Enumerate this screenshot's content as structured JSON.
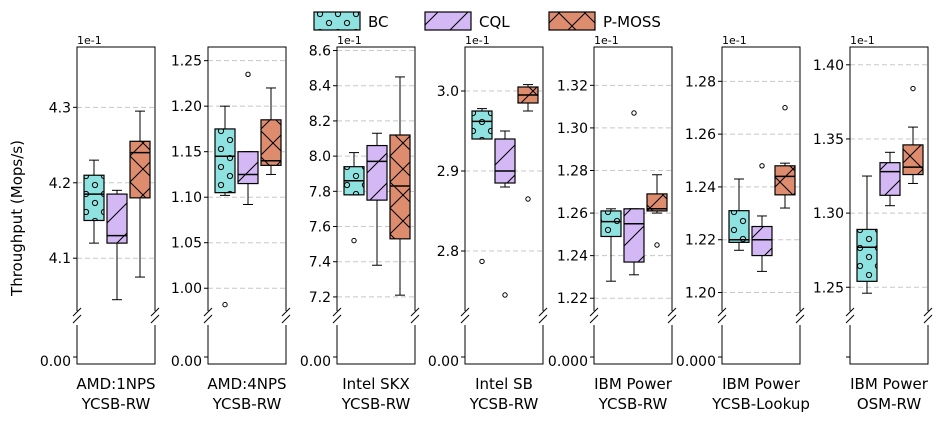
{
  "chart_data": {
    "type": "box",
    "y_axis_label": "Throughput (Mops/s)",
    "legend": [
      {
        "key": "BC",
        "label": "BC",
        "color": "#8ee3e0",
        "pattern": "dots"
      },
      {
        "key": "CQL",
        "label": "CQL",
        "color": "#d4b8f5",
        "pattern": "diag"
      },
      {
        "key": "PMOSS",
        "label": "P-MOSS",
        "color": "#dd8c6e",
        "pattern": "cross"
      }
    ],
    "panels": [
      {
        "key": "amd1",
        "label_line1": "AMD:1NPS",
        "label_line2": "YCSB-RW",
        "scale": "1e-1",
        "ylim": [
          4.03,
          4.38
        ],
        "ticks": [
          {
            "v": 4.1,
            "t": "4.1"
          },
          {
            "v": 4.2,
            "t": "4.2"
          },
          {
            "v": 4.3,
            "t": "4.3"
          }
        ],
        "zero_label": "0.00",
        "boxes": [
          {
            "series": "BC",
            "whislo": 4.12,
            "q1": 4.15,
            "med": 4.185,
            "q3": 4.21,
            "whishi": 4.23,
            "fliers": []
          },
          {
            "series": "CQL",
            "whislo": 4.045,
            "q1": 4.12,
            "med": 4.13,
            "q3": 4.185,
            "whishi": 4.19,
            "fliers": []
          },
          {
            "series": "PMOSS",
            "whislo": 4.075,
            "q1": 4.18,
            "med": 4.24,
            "q3": 4.255,
            "whishi": 4.295,
            "fliers": []
          }
        ]
      },
      {
        "key": "amd4",
        "label_line1": "AMD:4NPS",
        "label_line2": "YCSB-RW",
        "scale": "",
        "ylim": [
          0.975,
          1.265
        ],
        "ticks": [
          {
            "v": 1.0,
            "t": "1.00"
          },
          {
            "v": 1.05,
            "t": "1.05"
          },
          {
            "v": 1.1,
            "t": "1.10"
          },
          {
            "v": 1.15,
            "t": "1.15"
          },
          {
            "v": 1.2,
            "t": "1.20"
          },
          {
            "v": 1.25,
            "t": "1.25"
          }
        ],
        "zero_label": "0.00",
        "boxes": [
          {
            "series": "BC",
            "whislo": 1.102,
            "q1": 1.105,
            "med": 1.145,
            "q3": 1.175,
            "whishi": 1.2,
            "fliers": [
              0.982
            ]
          },
          {
            "series": "CQL",
            "whislo": 1.092,
            "q1": 1.115,
            "med": 1.125,
            "q3": 1.15,
            "whishi": 1.15,
            "fliers": [
              1.235
            ]
          },
          {
            "series": "PMOSS",
            "whislo": 1.125,
            "q1": 1.135,
            "med": 1.14,
            "q3": 1.185,
            "whishi": 1.22,
            "fliers": []
          }
        ]
      },
      {
        "key": "skx",
        "label_line1": "Intel SKX",
        "label_line2": "YCSB-RW",
        "scale": "1e-1",
        "ylim": [
          7.12,
          8.62
        ],
        "ticks": [
          {
            "v": 7.2,
            "t": "7.2"
          },
          {
            "v": 7.4,
            "t": "7.4"
          },
          {
            "v": 7.6,
            "t": "7.6"
          },
          {
            "v": 7.8,
            "t": "7.8"
          },
          {
            "v": 8.0,
            "t": "8.0"
          },
          {
            "v": 8.2,
            "t": "8.2"
          },
          {
            "v": 8.4,
            "t": "8.4"
          },
          {
            "v": 8.6,
            "t": "8.6"
          }
        ],
        "zero_label": "0.00",
        "boxes": [
          {
            "series": "BC",
            "whislo": 7.78,
            "q1": 7.78,
            "med": 7.86,
            "q3": 7.94,
            "whishi": 8.02,
            "fliers": [
              7.52
            ]
          },
          {
            "series": "CQL",
            "whislo": 7.38,
            "q1": 7.75,
            "med": 7.97,
            "q3": 8.06,
            "whishi": 8.13,
            "fliers": []
          },
          {
            "series": "PMOSS",
            "whislo": 7.21,
            "q1": 7.53,
            "med": 7.83,
            "q3": 8.12,
            "whishi": 8.45,
            "fliers": []
          }
        ]
      },
      {
        "key": "sb",
        "label_line1": "Intel SB",
        "label_line2": "YCSB-RW",
        "scale": "1e-1",
        "ylim": [
          2.725,
          3.055
        ],
        "ticks": [
          {
            "v": 2.8,
            "t": "2.8"
          },
          {
            "v": 2.9,
            "t": "2.9"
          },
          {
            "v": 3.0,
            "t": "3.0"
          }
        ],
        "zero_label": "0.00",
        "boxes": [
          {
            "series": "BC",
            "whislo": 2.94,
            "q1": 2.94,
            "med": 2.962,
            "q3": 2.975,
            "whishi": 2.978,
            "fliers": [
              2.787
            ]
          },
          {
            "series": "CQL",
            "whislo": 2.88,
            "q1": 2.885,
            "med": 2.9,
            "q3": 2.94,
            "whishi": 2.95,
            "fliers": [
              2.745
            ]
          },
          {
            "series": "PMOSS",
            "whislo": 2.975,
            "q1": 2.985,
            "med": 2.995,
            "q3": 3.005,
            "whishi": 3.008,
            "fliers": [
              2.865
            ]
          }
        ]
      },
      {
        "key": "ibmrw",
        "label_line1": "IBM Power",
        "label_line2": "YCSB-RW",
        "scale": "1e-1",
        "ylim": [
          1.214,
          1.338
        ],
        "ticks": [
          {
            "v": 1.22,
            "t": "1.22"
          },
          {
            "v": 1.24,
            "t": "1.24"
          },
          {
            "v": 1.26,
            "t": "1.26"
          },
          {
            "v": 1.28,
            "t": "1.28"
          },
          {
            "v": 1.3,
            "t": "1.30"
          },
          {
            "v": 1.32,
            "t": "1.32"
          }
        ],
        "zero_label": "0.000",
        "boxes": [
          {
            "series": "BC",
            "whislo": 1.228,
            "q1": 1.249,
            "med": 1.256,
            "q3": 1.261,
            "whishi": 1.262,
            "fliers": []
          },
          {
            "series": "CQL",
            "whislo": 1.231,
            "q1": 1.237,
            "med": 1.255,
            "q3": 1.262,
            "whishi": 1.262,
            "fliers": [
              1.307
            ]
          },
          {
            "series": "PMOSS",
            "whislo": 1.26,
            "q1": 1.261,
            "med": 1.262,
            "q3": 1.269,
            "whishi": 1.278,
            "fliers": [
              1.245
            ]
          }
        ]
      },
      {
        "key": "ibmlookup",
        "label_line1": "IBM Power",
        "label_line2": "YCSB-Lookup",
        "scale": "1e-1",
        "ylim": [
          1.193,
          1.293
        ],
        "ticks": [
          {
            "v": 1.2,
            "t": "1.20"
          },
          {
            "v": 1.22,
            "t": "1.22"
          },
          {
            "v": 1.24,
            "t": "1.24"
          },
          {
            "v": 1.26,
            "t": "1.26"
          },
          {
            "v": 1.28,
            "t": "1.28"
          }
        ],
        "zero_label": "0.000",
        "boxes": [
          {
            "series": "BC",
            "whislo": 1.216,
            "q1": 1.219,
            "med": 1.22,
            "q3": 1.231,
            "whishi": 1.243,
            "fliers": []
          },
          {
            "series": "CQL",
            "whislo": 1.208,
            "q1": 1.214,
            "med": 1.22,
            "q3": 1.225,
            "whishi": 1.229,
            "fliers": [
              1.248
            ]
          },
          {
            "series": "PMOSS",
            "whislo": 1.232,
            "q1": 1.237,
            "med": 1.244,
            "q3": 1.248,
            "whishi": 1.249,
            "fliers": [
              1.27
            ]
          }
        ]
      },
      {
        "key": "osm",
        "label_line1": "IBM Power",
        "label_line2": "OSM-RW",
        "scale": "1e-1",
        "ylim": [
          1.234,
          1.412
        ],
        "ticks": [
          {
            "v": 1.25,
            "t": "1.25"
          },
          {
            "v": 1.3,
            "t": "1.30"
          },
          {
            "v": 1.35,
            "t": "1.35"
          },
          {
            "v": 1.4,
            "t": "1.40"
          }
        ],
        "zero_label": "",
        "boxes": [
          {
            "series": "BC",
            "whislo": 1.246,
            "q1": 1.254,
            "med": 1.277,
            "q3": 1.289,
            "whishi": 1.325,
            "fliers": []
          },
          {
            "series": "CQL",
            "whislo": 1.305,
            "q1": 1.312,
            "med": 1.328,
            "q3": 1.334,
            "whishi": 1.341,
            "fliers": []
          },
          {
            "series": "PMOSS",
            "whislo": 1.32,
            "q1": 1.326,
            "med": 1.331,
            "q3": 1.346,
            "whishi": 1.358,
            "fliers": [
              1.384
            ]
          }
        ]
      }
    ]
  }
}
